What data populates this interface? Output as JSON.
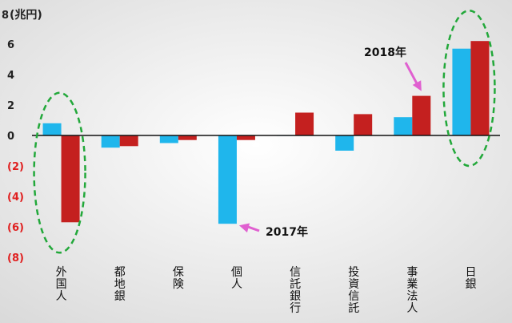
{
  "chart_data": {
    "type": "bar",
    "unit_label": "(兆円)",
    "categories": [
      "外国人",
      "都地銀",
      "保険",
      "個人",
      "信託銀行",
      "投資信託",
      "事業法人",
      "日銀"
    ],
    "series": [
      {
        "name": "2017年",
        "color": "#1fb6ec",
        "values": [
          0.8,
          -0.8,
          -0.5,
          -5.8,
          0.0,
          -1.0,
          1.2,
          5.7
        ]
      },
      {
        "name": "2018年",
        "color": "#c4201f",
        "values": [
          -5.7,
          -0.7,
          -0.3,
          -0.3,
          1.5,
          1.4,
          2.6,
          6.2
        ]
      }
    ],
    "ylim": [
      -8,
      8
    ],
    "yticks": [
      {
        "value": 8,
        "label": "8"
      },
      {
        "value": 6,
        "label": "6"
      },
      {
        "value": 4,
        "label": "4"
      },
      {
        "value": 2,
        "label": "2"
      },
      {
        "value": 0,
        "label": "0"
      },
      {
        "value": -2,
        "label": "(2)"
      },
      {
        "value": -4,
        "label": "(4)"
      },
      {
        "value": -6,
        "label": "(6)"
      },
      {
        "value": -8,
        "label": "(8)"
      }
    ],
    "negative_tick_color": "#e02020",
    "positive_tick_color": "#222222",
    "annotations": [
      {
        "text": "2017年",
        "series": "2017年",
        "category": "個人"
      },
      {
        "text": "2018年",
        "series": "2018年",
        "category": "事業法人"
      }
    ],
    "arrow_color": "#e060d0",
    "highlight_color": "#22a83a",
    "highlights": [
      "外国人",
      "日銀"
    ]
  }
}
